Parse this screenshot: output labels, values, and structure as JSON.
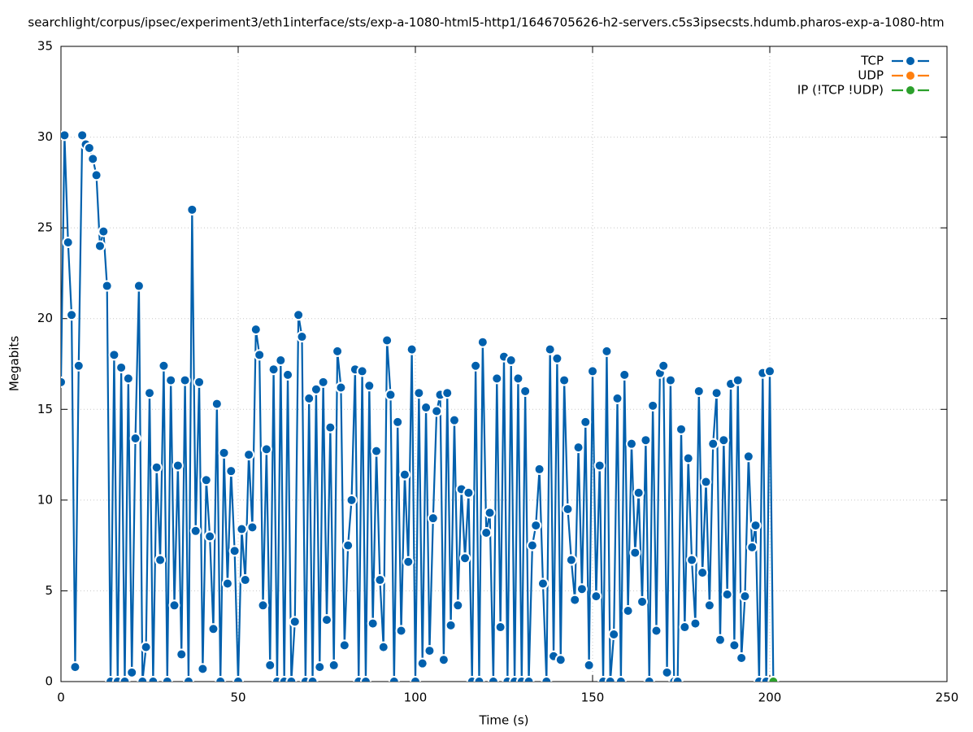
{
  "chart_data": {
    "type": "line",
    "title": "searchlight/corpus/ipsec/experiment3/eth1interface/sts/exp-a-1080-html5-http1/1646705626-h2-servers.c5s3ipsecsts.hdumb.pharos-exp-a-1080-htm",
    "x_label": "Time (s)",
    "y_label": "Megabits",
    "xlim": [
      0,
      250
    ],
    "xticks": [
      0,
      50,
      100,
      150,
      200,
      250
    ],
    "ylim": [
      0,
      35
    ],
    "yticks": [
      0,
      5,
      10,
      15,
      20,
      25,
      30,
      35
    ],
    "grid": true,
    "legend": "top-right",
    "series": [
      {
        "name": "TCP",
        "color": "#0060ad",
        "x": [
          0,
          1,
          2,
          3,
          4,
          5,
          6,
          7,
          8,
          9,
          10,
          11,
          12,
          13,
          14,
          15,
          16,
          17,
          18,
          19,
          20,
          21,
          22,
          23,
          24,
          25,
          26,
          27,
          28,
          29,
          30,
          31,
          32,
          33,
          34,
          35,
          36,
          37,
          38,
          39,
          40,
          41,
          42,
          43,
          44,
          45,
          46,
          47,
          48,
          49,
          50,
          51,
          52,
          53,
          54,
          55,
          56,
          57,
          58,
          59,
          60,
          61,
          62,
          63,
          64,
          65,
          66,
          67,
          68,
          69,
          70,
          71,
          72,
          73,
          74,
          75,
          76,
          77,
          78,
          79,
          80,
          81,
          82,
          83,
          84,
          85,
          86,
          87,
          88,
          89,
          90,
          91,
          92,
          93,
          94,
          95,
          96,
          97,
          98,
          99,
          100,
          101,
          102,
          103,
          104,
          105,
          106,
          107,
          108,
          109,
          110,
          111,
          112,
          113,
          114,
          115,
          116,
          117,
          118,
          119,
          120,
          121,
          122,
          123,
          124,
          125,
          126,
          127,
          128,
          129,
          130,
          131,
          132,
          133,
          134,
          135,
          136,
          137,
          138,
          139,
          140,
          141,
          142,
          143,
          144,
          145,
          146,
          147,
          148,
          149,
          150,
          151,
          152,
          153,
          154,
          155,
          156,
          157,
          158,
          159,
          160,
          161,
          162,
          163,
          164,
          165,
          166,
          167,
          168,
          169,
          170,
          171,
          172,
          173,
          174,
          175,
          176,
          177,
          178,
          179,
          180,
          181,
          182,
          183,
          184,
          185,
          186,
          187,
          188,
          189,
          190,
          191,
          192,
          193,
          194,
          195,
          196,
          197,
          198,
          199,
          200,
          201
        ],
        "values": [
          16.5,
          30.1,
          24.2,
          20.2,
          0.8,
          17.4,
          30.1,
          29.6,
          29.4,
          28.8,
          27.9,
          24.0,
          24.8,
          21.8,
          0,
          18.0,
          0,
          17.3,
          0,
          16.7,
          0.5,
          13.4,
          21.8,
          0,
          1.9,
          15.9,
          0,
          11.8,
          6.7,
          17.4,
          0,
          16.6,
          4.2,
          11.9,
          1.5,
          16.6,
          0,
          26.0,
          8.3,
          16.5,
          0.7,
          11.1,
          8.0,
          2.9,
          15.3,
          0,
          12.6,
          5.4,
          11.6,
          7.2,
          0,
          8.4,
          5.6,
          12.5,
          8.5,
          19.4,
          18.0,
          4.2,
          12.8,
          0.9,
          17.2,
          0,
          17.7,
          0,
          16.9,
          0,
          3.3,
          20.2,
          19.0,
          0,
          15.6,
          0,
          16.1,
          0.8,
          16.5,
          3.4,
          14.0,
          0.9,
          18.2,
          16.2,
          2.0,
          7.5,
          10.0,
          17.2,
          0,
          17.1,
          0,
          16.3,
          3.2,
          12.7,
          5.6,
          1.9,
          18.8,
          15.8,
          0,
          14.3,
          2.8,
          11.4,
          6.6,
          18.3,
          0,
          15.9,
          1.0,
          15.1,
          1.7,
          9.0,
          14.9,
          15.8,
          1.2,
          15.9,
          3.1,
          14.4,
          4.2,
          10.6,
          6.8,
          10.4,
          0,
          17.4,
          0,
          18.7,
          8.2,
          9.3,
          0,
          16.7,
          3.0,
          17.9,
          0,
          17.7,
          0,
          16.7,
          0,
          16.0,
          0,
          7.5,
          8.6,
          11.7,
          5.4,
          0,
          18.3,
          1.4,
          17.8,
          1.2,
          16.6,
          9.5,
          6.7,
          4.5,
          12.9,
          5.1,
          14.3,
          0.9,
          17.1,
          4.7,
          11.9,
          0,
          18.2,
          0,
          2.6,
          15.6,
          0,
          16.9,
          3.9,
          13.1,
          7.1,
          10.4,
          4.4,
          13.3,
          0,
          15.2,
          2.8,
          17.0,
          17.4,
          0.5,
          16.6,
          0,
          0,
          13.9,
          3.0,
          12.3,
          6.7,
          3.2,
          16.0,
          6.0,
          11.0,
          4.2,
          13.1,
          15.9,
          2.3,
          13.3,
          4.8,
          16.4,
          2.0,
          16.6,
          1.3,
          4.7,
          12.4,
          7.4,
          8.6,
          0,
          17.0,
          0,
          17.1,
          0
        ]
      },
      {
        "name": "UDP",
        "color": "#ff7f0e",
        "x": [
          201
        ],
        "values": [
          0
        ]
      },
      {
        "name": "IP (!TCP  !UDP)",
        "color": "#2ca02c",
        "x": [
          201
        ],
        "values": [
          0
        ]
      }
    ]
  }
}
